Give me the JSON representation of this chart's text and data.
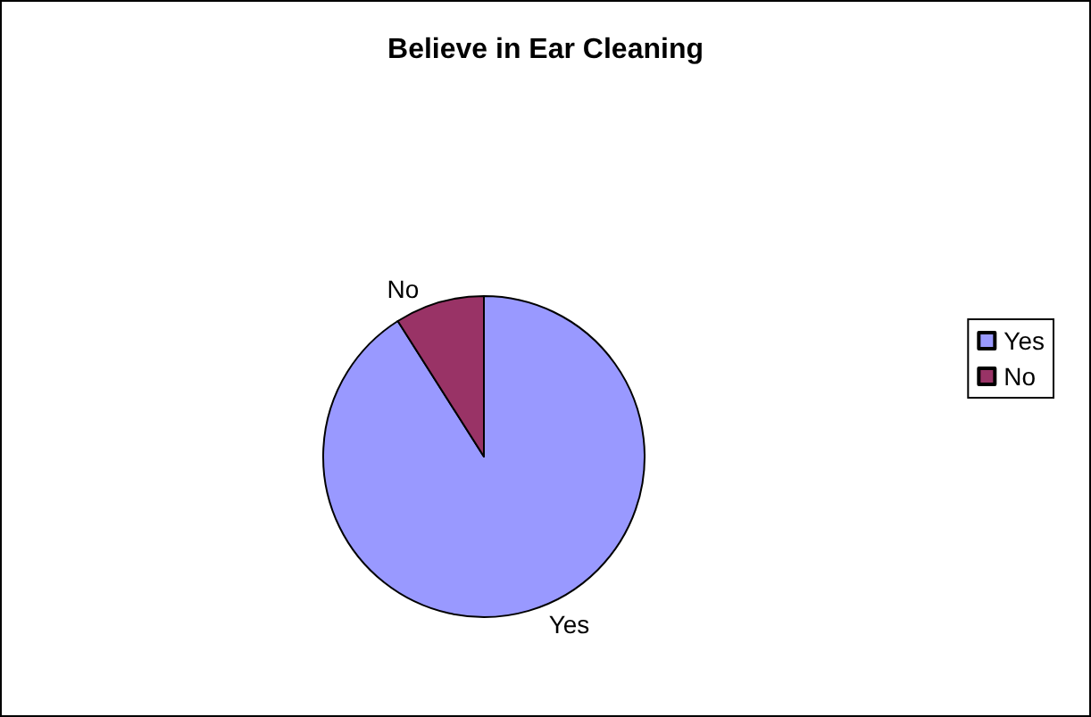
{
  "chart_data": {
    "type": "pie",
    "title": "Believe in Ear Cleaning",
    "categories": [
      "Yes",
      "No"
    ],
    "values": [
      91,
      9
    ],
    "colors": [
      "#9999ff",
      "#993366"
    ],
    "legend": "right"
  }
}
